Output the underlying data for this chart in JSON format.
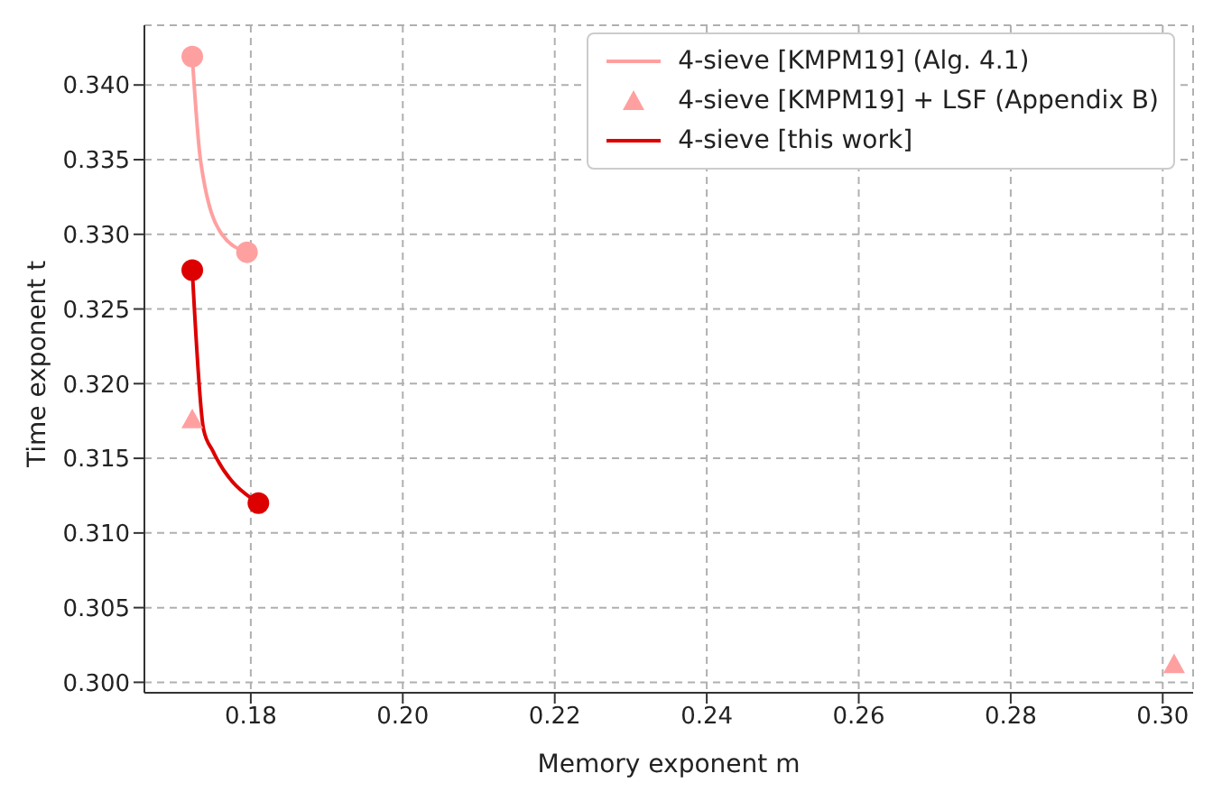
{
  "chart_data": {
    "type": "line",
    "xlabel": "Memory exponent m",
    "ylabel": "Time exponent t",
    "xlim": [
      0.166,
      0.304
    ],
    "xticks": [
      {
        "value": 0.18,
        "label": "0.18"
      },
      {
        "value": 0.2,
        "label": "0.20"
      },
      {
        "value": 0.22,
        "label": "0.22"
      },
      {
        "value": 0.24,
        "label": "0.24"
      },
      {
        "value": 0.26,
        "label": "0.26"
      },
      {
        "value": 0.28,
        "label": "0.28"
      },
      {
        "value": 0.3,
        "label": "0.30"
      }
    ],
    "ylim": [
      0.2993,
      0.344
    ],
    "yticks": [
      {
        "value": 0.3,
        "label": "0.300"
      },
      {
        "value": 0.305,
        "label": "0.305"
      },
      {
        "value": 0.31,
        "label": "0.310"
      },
      {
        "value": 0.315,
        "label": "0.315"
      },
      {
        "value": 0.32,
        "label": "0.320"
      },
      {
        "value": 0.325,
        "label": "0.325"
      },
      {
        "value": 0.33,
        "label": "0.330"
      },
      {
        "value": 0.335,
        "label": "0.335"
      },
      {
        "value": 0.34,
        "label": "0.340"
      }
    ],
    "grid": true,
    "legend": "top right",
    "marker": "circle",
    "line_style": "solid",
    "series": [
      {
        "name": "4-sieve [KMPM19] (Alg. 4.1)",
        "color": "#ffa0a0",
        "x": [
          0.1723,
          0.1734,
          0.1762,
          0.1795
        ],
        "values": [
          0.3419,
          0.3349,
          0.33,
          0.3288
        ]
      },
      {
        "name": "4-sieve [KMPM19] + LSF (Appendix B)",
        "type": "scatter",
        "marker": "triangle",
        "color": "#ffa0a0",
        "x": [
          0.1723,
          0.3015
        ],
        "values": [
          0.3176,
          0.3012
        ]
      },
      {
        "name": "4-sieve [this work]",
        "color": "#dd0000",
        "x": [
          0.1723,
          0.1738,
          0.175,
          0.181
        ],
        "values": [
          0.3276,
          0.3169,
          0.3155,
          0.312
        ]
      }
    ]
  }
}
